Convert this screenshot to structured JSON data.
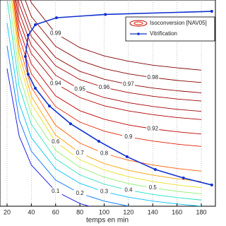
{
  "chart_data": {
    "type": "contour",
    "x_label": "temps en min",
    "contour_legend": "Isoconversion [NAV05]",
    "x": [
      20,
      30,
      40,
      60,
      80,
      100,
      120,
      140,
      160,
      180
    ],
    "xlim": [
      14.2,
      191.6
    ],
    "xticks": [
      20,
      40,
      60,
      80,
      100,
      120,
      140,
      160,
      180
    ],
    "ylim": [
      0,
      100
    ],
    "grid": true,
    "series": [
      {
        "name": "0.1",
        "color": "#1010e0",
        "values": [
          66.7,
          34,
          20,
          7.3,
          1.3,
          -2.1,
          -4.3,
          -5.9,
          -7.1,
          -8
        ]
      },
      {
        "name": "0.2",
        "color": "#0070ff",
        "values": [
          77.8,
          42,
          26.7,
          12.7,
          6.2,
          2.5,
          0,
          -1.7,
          -3,
          -4
        ]
      },
      {
        "name": "0.3",
        "color": "#00c0ff",
        "values": [
          88.9,
          50,
          33.3,
          18.2,
          11.1,
          7,
          4.4,
          2.5,
          1.1,
          0
        ]
      },
      {
        "name": "0.4",
        "color": "#20e0c0",
        "values": [
          100.8,
          58,
          39.7,
          23,
          15.2,
          10.7,
          7.8,
          5.7,
          4.2,
          3
        ]
      },
      {
        "name": "0.5",
        "color": "#90f070",
        "values": [
          109.1,
          64,
          44.7,
          27.1,
          18.9,
          14.1,
          11,
          8.9,
          7.2,
          6
        ]
      },
      {
        "name": "0.6",
        "color": "#e8e020",
        "values": [
          117.4,
          70,
          49.7,
          31.2,
          22.6,
          17.6,
          14.3,
          12,
          10.3,
          9
        ]
      },
      {
        "name": "0.7",
        "color": "#ffa000",
        "values": [
          122.2,
          74,
          53.3,
          34.5,
          25.8,
          20.7,
          17.4,
          15.1,
          13.3,
          12
        ]
      },
      {
        "name": "0.8",
        "color": "#ff5a00",
        "values": [
          125.4,
          78,
          57.7,
          39.2,
          30.6,
          25.6,
          22.3,
          20,
          18.3,
          17
        ]
      },
      {
        "name": "0.9",
        "color": "#e02000",
        "values": [
          123.2,
          82,
          64.3,
          48.3,
          40.8,
          36.4,
          33.6,
          31.6,
          30.1,
          29
        ]
      },
      {
        "name": "0.92",
        "color": "#c00000",
        "values": [
          125.7,
          86,
          69,
          53.5,
          46.3,
          42.2,
          39.4,
          37.5,
          36.1,
          35
        ]
      },
      {
        "name": "0.94",
        "color": "#b00000",
        "values": [
          127.3,
          90,
          74,
          59.5,
          52.7,
          48.7,
          46.2,
          44.4,
          43,
          42
        ]
      },
      {
        "name": "0.95",
        "color": "#a80000",
        "values": [
          131.3,
          94,
          78,
          63.5,
          56.7,
          52.7,
          50.2,
          48.4,
          47,
          46
        ]
      },
      {
        "name": "0.96",
        "color": "#a00000",
        "values": [
          134.6,
          98,
          82.3,
          68.1,
          61.4,
          57.6,
          55.1,
          53.3,
          52,
          51
        ]
      },
      {
        "name": "0.97",
        "color": "#900000",
        "values": [
          138.6,
          102,
          86.3,
          72.1,
          65.4,
          61.6,
          59.1,
          57.3,
          56,
          55
        ]
      },
      {
        "name": "0.98",
        "color": "#880000",
        "values": [
          145.3,
          108,
          92,
          77.5,
          70.7,
          66.7,
          64.2,
          62.4,
          61,
          60
        ]
      },
      {
        "name": "0.99",
        "color": "#800000",
        "values": [
          153.1,
          115,
          98.7,
          83.8,
          76.9,
          72.9,
          70.3,
          68.4,
          67.1,
          66
        ]
      }
    ],
    "vitrification": {
      "name": "Vitrification",
      "color": "#1030d0",
      "x": [
        188.6,
        101,
        60.7,
        43.3,
        37.4,
        35.1,
        37.4,
        43.3,
        54.9,
        72.3,
        95.6,
        118.8,
        142.1,
        165.3,
        188.6
      ],
      "values": [
        94.5,
        93,
        91.4,
        88,
        82.9,
        72.6,
        64,
        57.2,
        48.6,
        40,
        31.5,
        24,
        17.8,
        13.7,
        10.3
      ]
    }
  }
}
